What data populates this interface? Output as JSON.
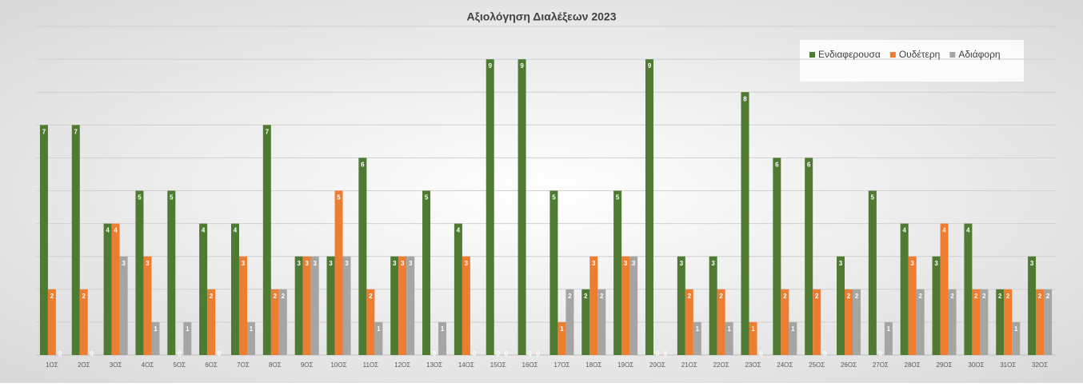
{
  "chart_data": {
    "type": "bar",
    "title": "Αξιολόγηση Διαλέξεων 2023",
    "categories": [
      "1ΟΣ",
      "2ΟΣ",
      "3ΟΣ",
      "4ΟΣ",
      "5ΟΣ",
      "6ΟΣ",
      "7ΟΣ",
      "8ΟΣ",
      "9ΟΣ",
      "10ΟΣ",
      "11ΟΣ",
      "12ΟΣ",
      "13ΟΣ",
      "14ΟΣ",
      "15ΟΣ",
      "16ΟΣ",
      "17ΟΣ",
      "18ΟΣ",
      "19ΟΣ",
      "20ΟΣ",
      "21ΟΣ",
      "22ΟΣ",
      "23ΟΣ",
      "24ΟΣ",
      "25ΟΣ",
      "26ΟΣ",
      "27ΟΣ",
      "28ΟΣ",
      "29ΟΣ",
      "30ΟΣ",
      "31ΟΣ",
      "32ΟΣ"
    ],
    "series": [
      {
        "name": "Ενδιαφερουσα",
        "color": "#4f7a32",
        "values": [
          7,
          7,
          4,
          5,
          5,
          4,
          4,
          7,
          3,
          3,
          6,
          3,
          5,
          4,
          9,
          9,
          5,
          2,
          5,
          9,
          3,
          3,
          8,
          6,
          6,
          3,
          5,
          4,
          3,
          4,
          2,
          3
        ]
      },
      {
        "name": "Ουδέτερη",
        "color": "#ed7d31",
        "values": [
          2,
          2,
          4,
          3,
          0,
          2,
          3,
          2,
          3,
          5,
          2,
          3,
          0,
          3,
          0,
          0,
          1,
          3,
          3,
          0,
          2,
          2,
          1,
          2,
          2,
          2,
          0,
          3,
          4,
          2,
          2,
          2
        ]
      },
      {
        "name": "Αδιάφορη",
        "color": "#a5a5a5",
        "values": [
          0,
          0,
          3,
          1,
          1,
          0,
          1,
          2,
          3,
          3,
          1,
          3,
          1,
          0,
          0,
          0,
          2,
          2,
          3,
          0,
          1,
          1,
          0,
          1,
          0,
          2,
          1,
          2,
          2,
          2,
          1,
          2
        ]
      }
    ],
    "ylim": [
      0,
      10
    ],
    "yticks": [
      0,
      1,
      2,
      3,
      4,
      5,
      6,
      7,
      8,
      9,
      10
    ],
    "grid": true,
    "legend": "top-right"
  }
}
